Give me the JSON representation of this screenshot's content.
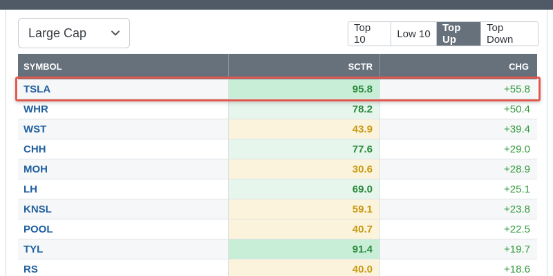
{
  "filter": {
    "selected": "Large Cap"
  },
  "buttons": [
    {
      "label": "Top 10",
      "active": false
    },
    {
      "label": "Low 10",
      "active": false
    },
    {
      "label": "Top Up",
      "active": true
    },
    {
      "label": "Top Down",
      "active": false
    }
  ],
  "table": {
    "headers": {
      "symbol": "SYMBOL",
      "sctr": "SCTR",
      "chg": "CHG"
    },
    "rows": [
      {
        "symbol": "TSLA",
        "sctr": "95.8",
        "chg": "+55.8",
        "tone": "green-strong"
      },
      {
        "symbol": "WHR",
        "sctr": "78.2",
        "chg": "+50.4",
        "tone": "green-light"
      },
      {
        "symbol": "WST",
        "sctr": "43.9",
        "chg": "+39.4",
        "tone": "yellow"
      },
      {
        "symbol": "CHH",
        "sctr": "77.6",
        "chg": "+29.0",
        "tone": "green-light"
      },
      {
        "symbol": "MOH",
        "sctr": "30.6",
        "chg": "+28.9",
        "tone": "yellow"
      },
      {
        "symbol": "LH",
        "sctr": "69.0",
        "chg": "+25.1",
        "tone": "green-light"
      },
      {
        "symbol": "KNSL",
        "sctr": "59.1",
        "chg": "+23.8",
        "tone": "yellow"
      },
      {
        "symbol": "POOL",
        "sctr": "40.7",
        "chg": "+22.5",
        "tone": "yellow"
      },
      {
        "symbol": "TYL",
        "sctr": "91.4",
        "chg": "+19.7",
        "tone": "green-strong"
      },
      {
        "symbol": "RS",
        "sctr": "40.0",
        "chg": "+18.6",
        "tone": "yellow"
      }
    ]
  },
  "colors": {
    "header_bg": "#67717c",
    "highlight_border": "#e0594f",
    "green_strong_bg": "#c9eed8",
    "green_light_bg": "#e6f6ec",
    "yellow_bg": "#fbf3dc",
    "green_text": "#2a8a3b",
    "yellow_text": "#c79a12",
    "chg_text": "#2f9a3a",
    "symbol_text": "#1f5fa0"
  },
  "icons": {
    "dropdown": "chevron-down-icon"
  }
}
